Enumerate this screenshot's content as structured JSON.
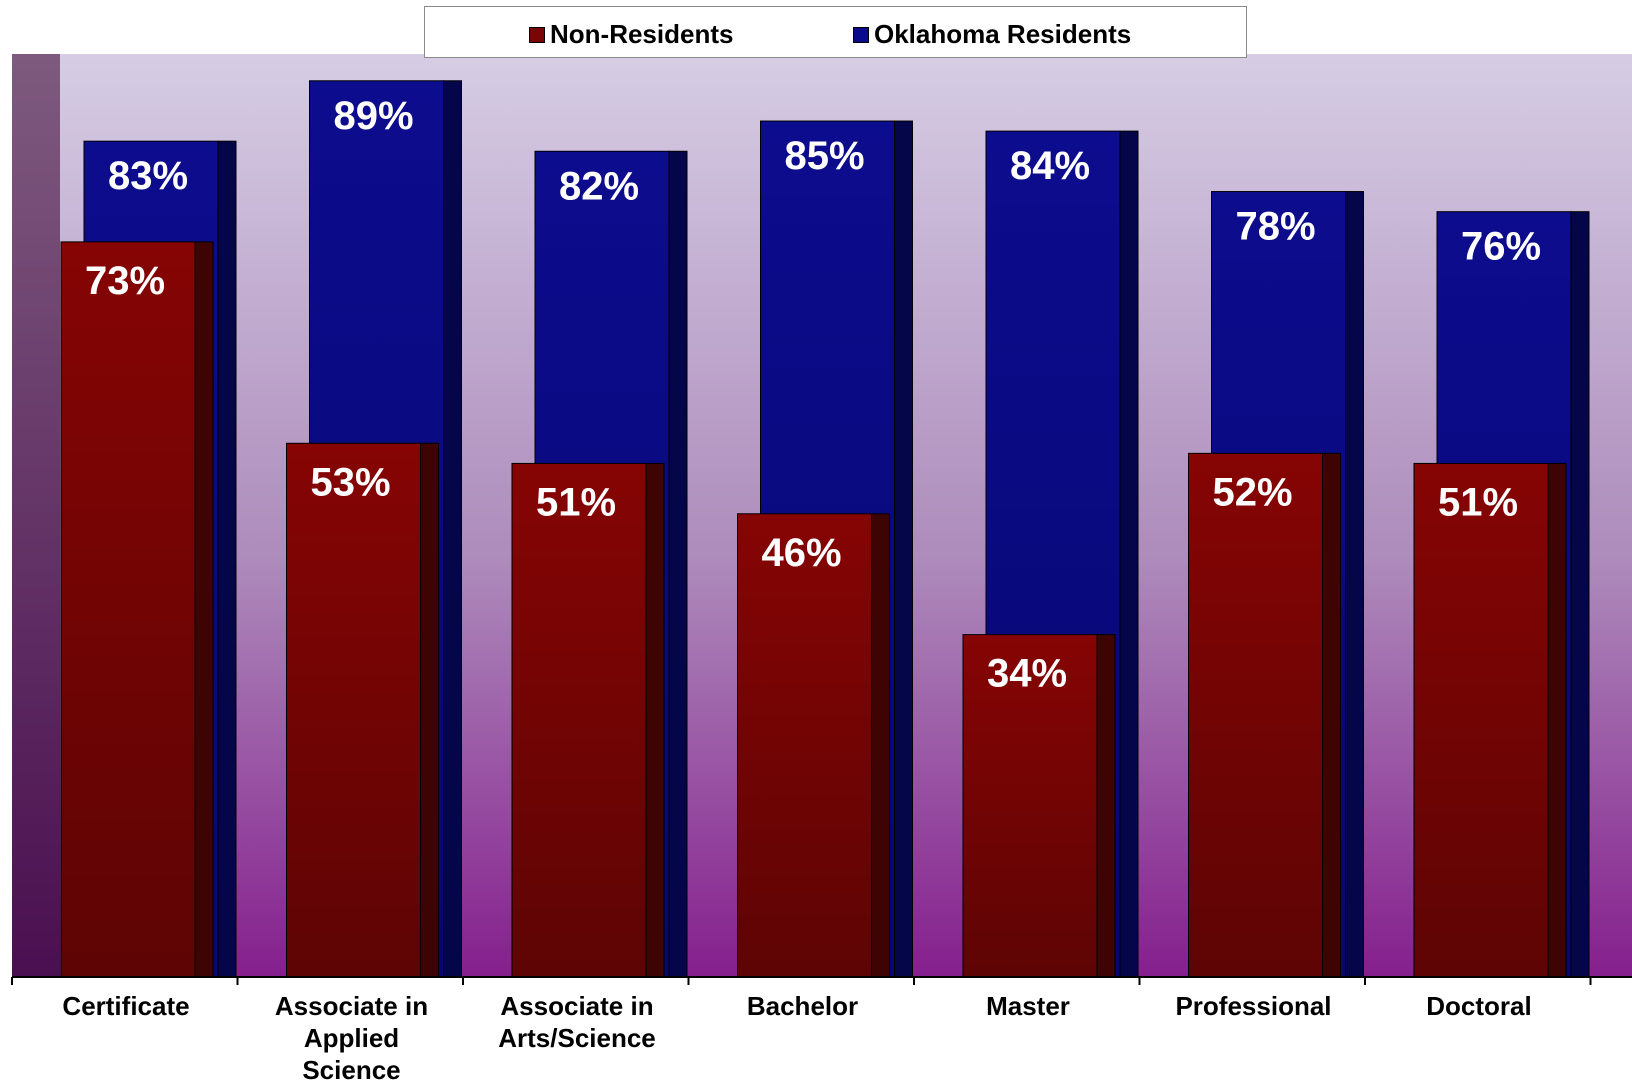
{
  "legend": {
    "non_residents": "Non-Residents",
    "oklahoma_residents": "Oklahoma Residents"
  },
  "colors": {
    "non_residents": "#7a0505",
    "oklahoma_residents": "#0a0a8c",
    "plot_top": "#d6cde4",
    "plot_bottom": "#851f8d"
  },
  "chart_data": {
    "type": "bar",
    "categories": [
      "Certificate",
      "Associate in Applied Science",
      "Associate in Arts/Science",
      "Bachelor",
      "Master",
      "Professional",
      "Doctoral"
    ],
    "series": [
      {
        "name": "Non-Residents",
        "values": [
          73,
          53,
          51,
          46,
          34,
          52,
          51
        ],
        "labels": [
          "73%",
          "53%",
          "51%",
          "46%",
          "34%",
          "52%",
          "51%"
        ]
      },
      {
        "name": "Oklahoma Residents",
        "values": [
          83,
          89,
          82,
          85,
          84,
          78,
          76
        ],
        "labels": [
          "83%",
          "89%",
          "82%",
          "85%",
          "84%",
          "78%",
          "76%"
        ]
      }
    ],
    "category_label_lines": [
      [
        "Certificate"
      ],
      [
        "Associate in",
        "Applied",
        "Science"
      ],
      [
        "Associate in",
        "Arts/Science"
      ],
      [
        "Bachelor"
      ],
      [
        "Master"
      ],
      [
        "Professional"
      ],
      [
        "Doctoral"
      ]
    ],
    "legend_position": "top",
    "grid": false,
    "style": "3d-overlapping-columns"
  }
}
